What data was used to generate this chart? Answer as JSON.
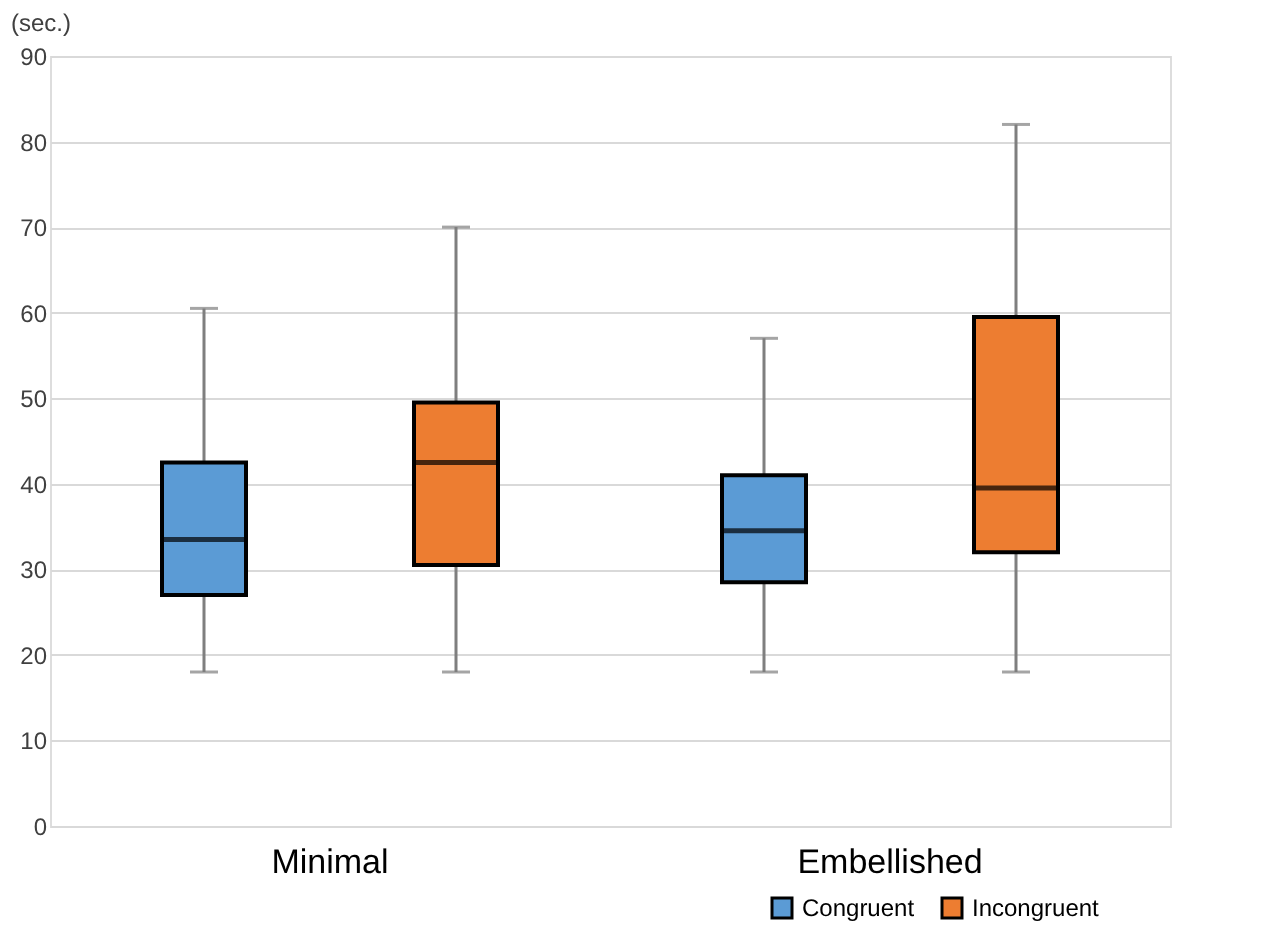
{
  "chart_data": {
    "type": "box",
    "ylabel": "(sec.)",
    "categories": [
      "Minimal",
      "Embellished"
    ],
    "ylim": [
      0,
      90
    ],
    "yticks": [
      0,
      10,
      20,
      30,
      40,
      50,
      60,
      70,
      80,
      90
    ],
    "grid": "y",
    "legend": "bottom right",
    "series": [
      {
        "name": "Congruent",
        "color": "#5b9bd5",
        "boxes": [
          {
            "low": 18,
            "q1": 27,
            "median": 33.5,
            "q3": 42.5,
            "high": 60.5
          },
          {
            "low": 18,
            "q1": 28.5,
            "median": 34.5,
            "q3": 41,
            "high": 57
          }
        ]
      },
      {
        "name": "Incongruent",
        "color": "#ed7d31",
        "boxes": [
          {
            "low": 18,
            "q1": 30.5,
            "median": 42.5,
            "q3": 49.5,
            "high": 70
          },
          {
            "low": 18,
            "q1": 32,
            "median": 39.5,
            "q3": 59.5,
            "high": 82
          }
        ]
      }
    ]
  }
}
